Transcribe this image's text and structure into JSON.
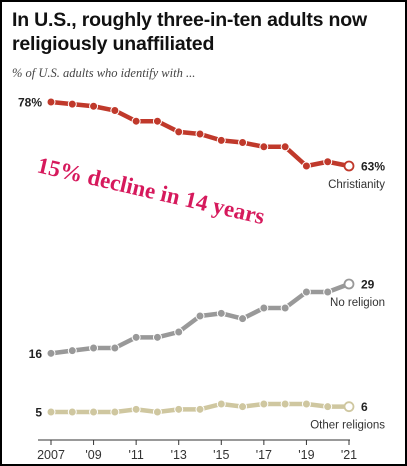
{
  "title": "In U.S., roughly three-in-ten adults now religiously unaffiliated",
  "subtitle": "% of U.S. adults who identify with ...",
  "annotation": "15% decline in 14 years",
  "colors": {
    "christianity": "#c0392b",
    "no_religion": "#999999",
    "other_religions": "#cfc7a0"
  },
  "chart_data": {
    "type": "line",
    "title": "In U.S., roughly three-in-ten adults now religiously unaffiliated",
    "subtitle": "% of U.S. adults who identify with ...",
    "x": [
      2007,
      2008,
      2009,
      2010,
      2011,
      2012,
      2013,
      2014,
      2015,
      2016,
      2017,
      2018,
      2019,
      2020,
      2021
    ],
    "x_tick_labels": [
      "2007",
      "'09",
      "'11",
      "'13",
      "'15",
      "'17",
      "'19",
      "'21"
    ],
    "ylim": [
      0,
      80
    ],
    "grid": false,
    "series": [
      {
        "name": "Christianity",
        "values": [
          78,
          77.5,
          77,
          76,
          73.5,
          73.5,
          71,
          70.5,
          69,
          68.5,
          67.5,
          67.5,
          63,
          64,
          63
        ],
        "start_label": "78%",
        "end_label": "63%"
      },
      {
        "name": "No religion",
        "values": [
          16,
          16.5,
          17,
          17,
          19,
          19,
          20,
          23,
          23.5,
          22.5,
          24.5,
          24.5,
          27.5,
          27.5,
          29
        ],
        "start_label": "16",
        "end_label": "29"
      },
      {
        "name": "Other religions",
        "values": [
          5,
          5,
          5,
          5,
          5.5,
          5,
          5.5,
          5.5,
          6.5,
          6,
          6.5,
          6.5,
          6.5,
          6,
          6
        ],
        "start_label": "5",
        "end_label": "6"
      }
    ]
  }
}
